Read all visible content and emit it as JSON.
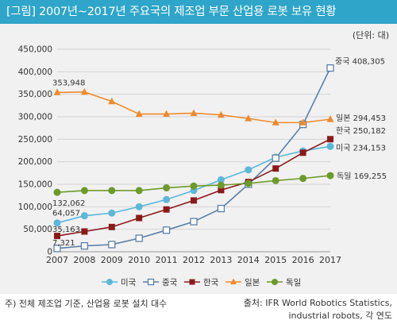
{
  "title": "[그림] 2007년~2017년 주요국의 제조업 부문 산업용 로봇 보유 현황",
  "unit": "(단위: 대)",
  "note": "주) 전체 제조업 기준, 산업용 로봇 설치 대수",
  "source_line1": "출처: IFR World Robotics Statistics,",
  "source_line2": "industrial robots, 각 연도",
  "chart_data": {
    "type": "line",
    "categories": [
      "2007",
      "2008",
      "2009",
      "2010",
      "2011",
      "2012",
      "2013",
      "2014",
      "2015",
      "2016",
      "2017"
    ],
    "yticks": [
      "0",
      "50,000",
      "100,000",
      "150,000",
      "200,000",
      "250,000",
      "300,000",
      "350,000",
      "400,000",
      "450,000"
    ],
    "ylim": [
      0,
      450000
    ],
    "grid": true,
    "legend_position": "bottom",
    "series": [
      {
        "name": "미국",
        "color": "#5bb8d9",
        "marker": "circle",
        "values": [
          64057,
          80000,
          86000,
          100000,
          116000,
          136000,
          160000,
          182000,
          210000,
          224000,
          234153
        ]
      },
      {
        "name": "중국",
        "color": "#5b7fa8",
        "marker": "square-open",
        "values": [
          7321,
          13000,
          16000,
          30000,
          48000,
          67000,
          96000,
          150000,
          208000,
          283000,
          408305
        ]
      },
      {
        "name": "한국",
        "color": "#8b1a1a",
        "marker": "square",
        "values": [
          35163,
          45000,
          55000,
          75000,
          94000,
          114000,
          137000,
          155000,
          185000,
          220000,
          250182
        ]
      },
      {
        "name": "일본",
        "color": "#ee8b2e",
        "marker": "triangle",
        "values": [
          353948,
          355000,
          334000,
          306000,
          306000,
          308000,
          304000,
          296000,
          287000,
          287000,
          294453
        ]
      },
      {
        "name": "독일",
        "color": "#6d9a2b",
        "marker": "circle",
        "values": [
          132062,
          136000,
          136000,
          136000,
          142000,
          146000,
          148000,
          152000,
          158000,
          163000,
          169255
        ]
      }
    ],
    "data_labels": [
      {
        "series": 0,
        "index": 0,
        "text": "64,057"
      },
      {
        "series": 1,
        "index": 0,
        "text": "7,321"
      },
      {
        "series": 2,
        "index": 0,
        "text": "35,163"
      },
      {
        "series": 3,
        "index": 0,
        "text": "353,948"
      },
      {
        "series": 4,
        "index": 0,
        "text": "132,062"
      },
      {
        "series": 1,
        "index": 10,
        "text": "중국 408,305"
      },
      {
        "series": 3,
        "index": 10,
        "text": "일본 294,453"
      },
      {
        "series": 2,
        "index": 10,
        "text": "한국 250,182"
      },
      {
        "series": 0,
        "index": 10,
        "text": "미국 234,153"
      },
      {
        "series": 4,
        "index": 10,
        "text": "독일 169,255"
      }
    ]
  }
}
